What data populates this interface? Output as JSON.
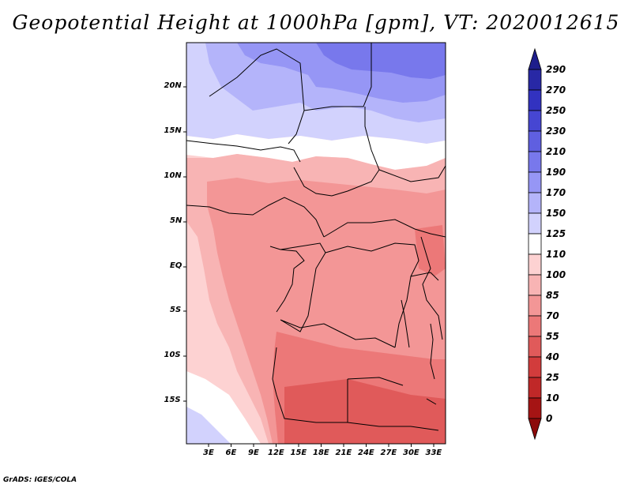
{
  "title": "Geopotential Height at 1000hPa [gpm], VT: 2020012615",
  "footer": "GrADS: IGES/COLA",
  "map": {
    "lat_labels": [
      "20N",
      "15N",
      "10N",
      "5N",
      "EQ",
      "5S",
      "10S",
      "15S"
    ],
    "lon_labels": [
      "3E",
      "6E",
      "9E",
      "12E",
      "15E",
      "18E",
      "21E",
      "24E",
      "27E",
      "30E",
      "33E"
    ]
  },
  "colorbar": {
    "levels": [
      "290",
      "270",
      "250",
      "230",
      "210",
      "190",
      "170",
      "150",
      "125",
      "110",
      "100",
      "85",
      "70",
      "55",
      "40",
      "25",
      "10",
      "0"
    ],
    "colors": [
      "#1e1e8c",
      "#2828a5",
      "#3232c0",
      "#4646d2",
      "#5f5fe0",
      "#7878ec",
      "#9696f5",
      "#b4b4fa",
      "#d2d2fd",
      "#ffffff",
      "#fdd2d2",
      "#f8b4b4",
      "#f39696",
      "#ec7878",
      "#e05a5a",
      "#d23c3c",
      "#c02828",
      "#a51414",
      "#8c0a0a"
    ]
  }
}
